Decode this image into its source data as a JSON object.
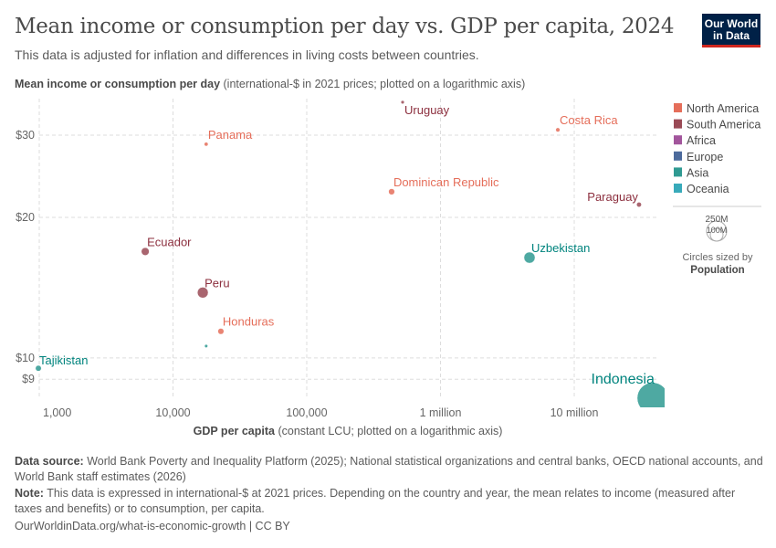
{
  "header": {
    "title": "Mean income or consumption per day vs. GDP per capita, 2024",
    "subtitle": "This data is adjusted for inflation and differences in living costs between countries.",
    "logo": "Our World in Data"
  },
  "chart_data": {
    "type": "scatter",
    "ylabel_bold": "Mean income or consumption per day",
    "ylabel_rest": " (international-$ in 2021 prices; plotted on a logarithmic axis)",
    "xlabel_bold": "GDP per capita",
    "xlabel_rest": " (constant LCU; plotted on a logarithmic axis)",
    "x_scale": "log",
    "y_scale": "log",
    "xlim": [
      800,
      45000000
    ],
    "ylim": [
      7.9,
      37
    ],
    "grid": true,
    "x_ticks": [
      {
        "value": 1000,
        "label": "1,000"
      },
      {
        "value": 10000,
        "label": "10,000"
      },
      {
        "value": 100000,
        "label": "100,000"
      },
      {
        "value": 1000000,
        "label": "1 million"
      },
      {
        "value": 10000000,
        "label": "10 million"
      }
    ],
    "y_ticks": [
      {
        "value": 9,
        "label": "$9"
      },
      {
        "value": 10,
        "label": "$10"
      },
      {
        "value": 20,
        "label": "$20"
      },
      {
        "value": 30,
        "label": "$30"
      }
    ],
    "legend_position": "right",
    "legend": [
      {
        "name": "North America",
        "color": "#e56e5a"
      },
      {
        "name": "South America",
        "color": "#9a4a56"
      },
      {
        "name": "Africa",
        "color": "#a2559c"
      },
      {
        "name": "Europe",
        "color": "#4c6a9c"
      },
      {
        "name": "Asia",
        "color": "#2f9a92"
      },
      {
        "name": "Oceania",
        "color": "#38aaba"
      }
    ],
    "size_legend": {
      "values": [
        "250M",
        "100M"
      ],
      "caption": "Circles sized by",
      "variable": "Population"
    },
    "points": [
      {
        "name": "Uruguay",
        "region": "South America",
        "x": 521000,
        "y": 35.3,
        "population": 3400000
      },
      {
        "name": "Costa Rica",
        "region": "North America",
        "x": 7540000,
        "y": 30.8,
        "population": 5200000
      },
      {
        "name": "Panama",
        "region": "North America",
        "x": 17700,
        "y": 28.7,
        "population": 4500000
      },
      {
        "name": "Dominican Republic",
        "region": "North America",
        "x": 431000,
        "y": 22.7,
        "population": 11000000
      },
      {
        "name": "Paraguay",
        "region": "South America",
        "x": 30500000,
        "y": 21.3,
        "population": 6900000
      },
      {
        "name": "Ecuador",
        "region": "South America",
        "x": 6200,
        "y": 16.9,
        "population": 18000000
      },
      {
        "name": "Uzbekistan",
        "region": "Asia",
        "x": 4630000,
        "y": 16.4,
        "population": 36000000
      },
      {
        "name": "Peru",
        "region": "South America",
        "x": 16700,
        "y": 13.8,
        "population": 34000000
      },
      {
        "name": "Honduras",
        "region": "North America",
        "x": 22800,
        "y": 11.4,
        "population": 10600000
      },
      {
        "name": "",
        "region": "Asia",
        "x": 17700,
        "y": 10.6,
        "population": 2500000
      },
      {
        "name": "Tajikistan",
        "region": "Asia",
        "x": 985,
        "y": 9.5,
        "population": 10000000
      },
      {
        "name": "Indonesia",
        "region": "Asia",
        "x": 38600000,
        "y": 8.2,
        "population": 280000000
      }
    ]
  },
  "footer": {
    "source_label": "Data source:",
    "source_text": " World Bank Poverty and Inequality Platform (2025); National statistical organizations and central banks, OECD national accounts, and World Bank staff estimates (2026)",
    "note_label": "Note:",
    "note_text": " This data is expressed in international-$ at 2021 prices. Depending on the country and year, the mean relates to income (measured after taxes and benefits) or to consumption, per capita.",
    "link": "OurWorldinData.org/what-is-economic-growth",
    "license": " | CC BY"
  }
}
